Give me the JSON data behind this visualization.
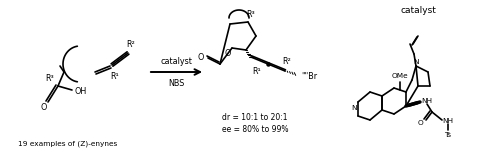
{
  "background": "#ffffff",
  "left_label": "19 examples of (Z)-enynes",
  "arrow_label_top": "catalyst",
  "arrow_label_bot": "NBS",
  "dr_text": "dr = 10:1 to 20:1",
  "ee_text": "ee = 80% to 99%",
  "catalyst_label": "catalyst",
  "figsize": [
    5.0,
    1.54
  ],
  "dpi": 100,
  "lw": 1.2,
  "fs": 6.5,
  "fss": 5.8
}
